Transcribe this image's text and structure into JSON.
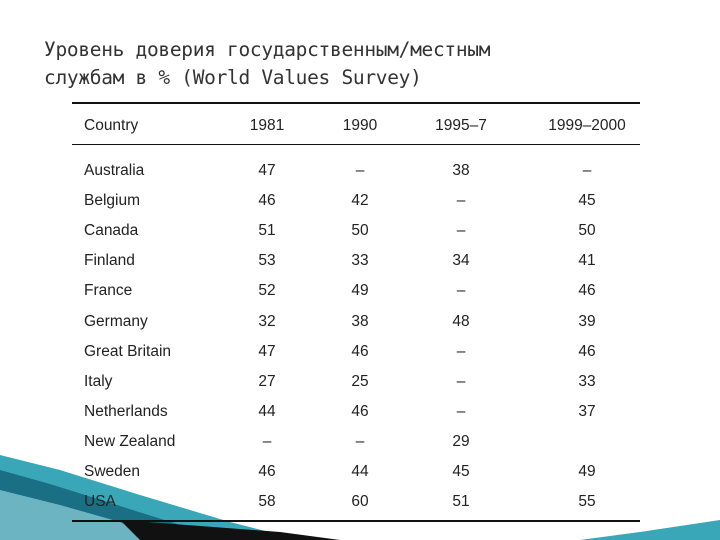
{
  "chart_data": {
    "type": "table",
    "title": "Уровень доверия государственным/местным службам в % (World Values Survey)",
    "title_lines": [
      "Уровень доверия государственным/местным",
      "службам в % (World Values Survey)"
    ],
    "columns": [
      "Country",
      "1981",
      "1990",
      "1995–7",
      "1999–2000"
    ],
    "rows": [
      [
        "Australia",
        "47",
        "–",
        "38",
        "–"
      ],
      [
        "Belgium",
        "46",
        "42",
        "–",
        "45"
      ],
      [
        "Canada",
        "51",
        "50",
        "–",
        "50"
      ],
      [
        "Finland",
        "53",
        "33",
        "34",
        "41"
      ],
      [
        "France",
        "52",
        "49",
        "–",
        "46"
      ],
      [
        "Germany",
        "32",
        "38",
        "48",
        "39"
      ],
      [
        "Great Britain",
        "47",
        "46",
        "–",
        "46"
      ],
      [
        "Italy",
        "27",
        "25",
        "–",
        "33"
      ],
      [
        "Netherlands",
        "44",
        "46",
        "–",
        "37"
      ],
      [
        "New Zealand",
        "–",
        "–",
        "29",
        ""
      ],
      [
        "Sweden",
        "46",
        "44",
        "45",
        "49"
      ],
      [
        "USA",
        "58",
        "60",
        "51",
        "55"
      ]
    ]
  },
  "colors": {
    "text": "#222222",
    "title": "#333333",
    "rule": "#111111",
    "accent_teal": "#3aa7b9",
    "accent_dark": "#1b6f84"
  }
}
